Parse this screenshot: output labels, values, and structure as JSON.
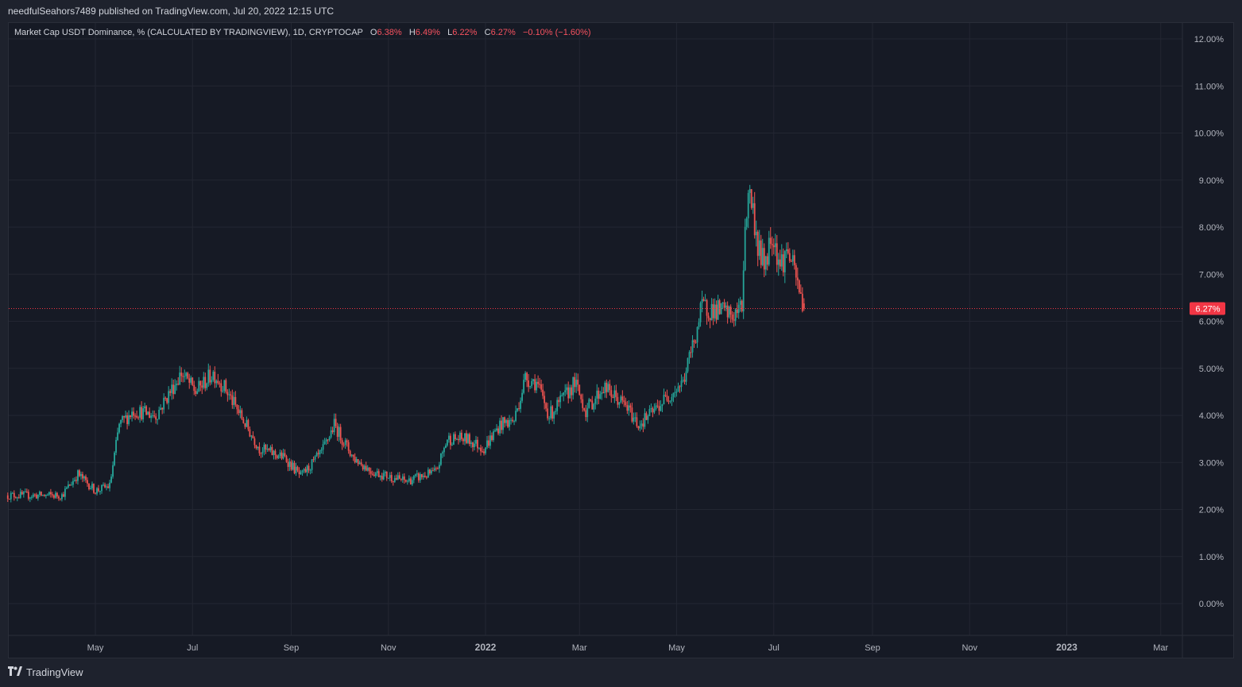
{
  "header": {
    "published": "needfulSeahors7489 published on TradingView.com, Jul 20, 2022 12:15 UTC"
  },
  "legend": {
    "symbol": "Market Cap USDT Dominance, % (CALCULATED BY TRADINGVIEW), 1D, CRYPTOCAP",
    "o_label": "O",
    "o_value": "6.38%",
    "h_label": "H",
    "h_value": "6.49%",
    "l_label": "L",
    "l_value": "6.22%",
    "c_label": "C",
    "c_value": "6.27%",
    "change": "−0.10% (−1.60%)"
  },
  "footer": {
    "brand": "TradingView"
  },
  "colors": {
    "up": "#26a69a",
    "down": "#ef5350",
    "grid": "#232632",
    "last_price": "#f23645"
  },
  "chart_data": {
    "type": "candlestick",
    "x_axis": {
      "ticks": [
        "May",
        "Jul",
        "Sep",
        "Nov",
        "2022",
        "Mar",
        "May",
        "Jul",
        "Sep",
        "Nov",
        "2023",
        "Mar"
      ]
    },
    "y_axis": {
      "ticks": [
        "12.00%",
        "11.00%",
        "10.00%",
        "9.00%",
        "8.00%",
        "7.00%",
        "6.00%",
        "5.00%",
        "4.00%",
        "3.00%",
        "2.00%",
        "1.00%",
        "0.00%"
      ],
      "range": [
        -0.6,
        12.4
      ]
    },
    "last_price": {
      "value": 6.27,
      "label": "6.27%"
    },
    "start_date": "2021-03-07",
    "end_date": "2022-07-20",
    "keypoints": [
      [
        "2021-03-07",
        2.3
      ],
      [
        "2021-04-10",
        2.3
      ],
      [
        "2021-04-20",
        2.75
      ],
      [
        "2021-05-01",
        2.4
      ],
      [
        "2021-05-10",
        2.5
      ],
      [
        "2021-05-16",
        3.8
      ],
      [
        "2021-05-25",
        4.1
      ],
      [
        "2021-06-08",
        4.0
      ],
      [
        "2021-06-24",
        4.9
      ],
      [
        "2021-07-03",
        4.5
      ],
      [
        "2021-07-14",
        4.9
      ],
      [
        "2021-07-21",
        4.6
      ],
      [
        "2021-07-31",
        4.0
      ],
      [
        "2021-08-12",
        3.3
      ],
      [
        "2021-08-28",
        3.1
      ],
      [
        "2021-09-07",
        2.7
      ],
      [
        "2021-09-20",
        3.2
      ],
      [
        "2021-09-28",
        3.8
      ],
      [
        "2021-10-10",
        3.1
      ],
      [
        "2021-10-22",
        2.8
      ],
      [
        "2021-11-12",
        2.6
      ],
      [
        "2021-12-01",
        2.8
      ],
      [
        "2021-12-08",
        3.5
      ],
      [
        "2021-12-20",
        3.5
      ],
      [
        "2021-12-31",
        3.3
      ],
      [
        "2022-01-10",
        3.8
      ],
      [
        "2022-01-19",
        3.9
      ],
      [
        "2022-01-26",
        4.8
      ],
      [
        "2022-02-02",
        4.7
      ],
      [
        "2022-02-10",
        4.0
      ],
      [
        "2022-02-20",
        4.4
      ],
      [
        "2022-02-26",
        4.7
      ],
      [
        "2022-03-05",
        4.1
      ],
      [
        "2022-03-16",
        4.6
      ],
      [
        "2022-03-30",
        4.2
      ],
      [
        "2022-04-07",
        3.8
      ],
      [
        "2022-04-17",
        4.1
      ],
      [
        "2022-04-25",
        4.4
      ],
      [
        "2022-05-05",
        4.7
      ],
      [
        "2022-05-12",
        5.6
      ],
      [
        "2022-05-17",
        6.3
      ],
      [
        "2022-05-30",
        6.2
      ],
      [
        "2022-06-05",
        6.1
      ],
      [
        "2022-06-11",
        6.3
      ],
      [
        "2022-06-13",
        8.1
      ],
      [
        "2022-06-16",
        8.8
      ],
      [
        "2022-06-21",
        7.6
      ],
      [
        "2022-06-25",
        7.2
      ],
      [
        "2022-06-30",
        7.9
      ],
      [
        "2022-07-05",
        7.2
      ],
      [
        "2022-07-10",
        7.5
      ],
      [
        "2022-07-15",
        6.9
      ],
      [
        "2022-07-20",
        6.27
      ]
    ]
  }
}
